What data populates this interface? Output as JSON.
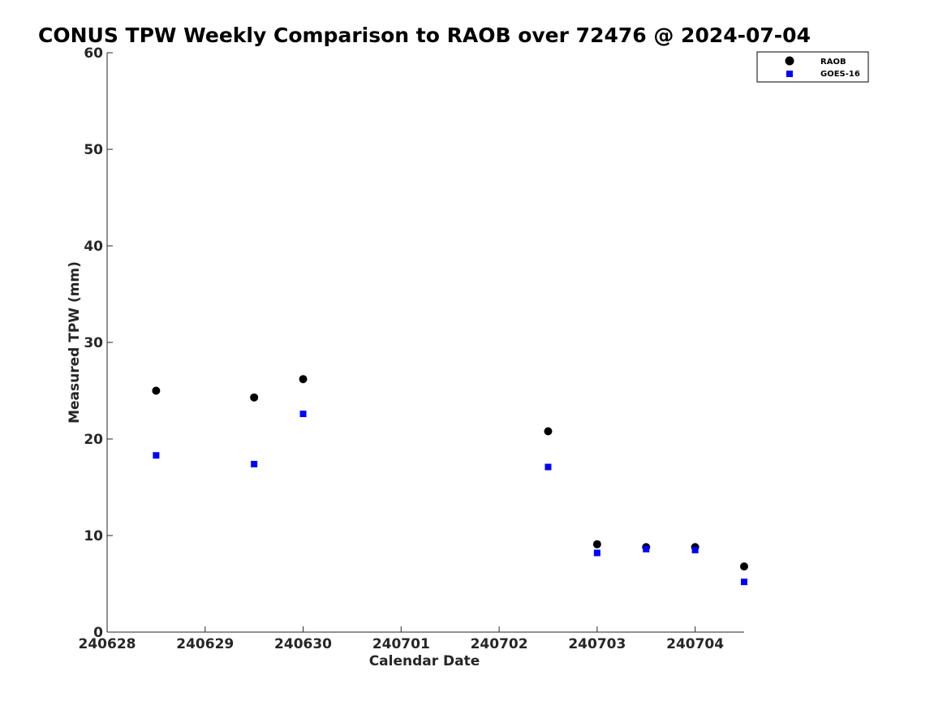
{
  "chart_data": {
    "type": "scatter",
    "title": "CONUS TPW Weekly Comparison to RAOB over 72476 @ 2024-07-04",
    "xlabel": "Calendar Date",
    "ylabel": "Measured TPW (mm)",
    "x_ticks": [
      "240628",
      "240629",
      "240630",
      "240701",
      "240702",
      "240703",
      "240704"
    ],
    "y_ticks": [
      "0",
      "10",
      "20",
      "30",
      "40",
      "50",
      "60"
    ],
    "xlim": [
      "2024-06-28 00:00",
      "2024-07-04 12:00"
    ],
    "ylim": [
      0,
      60
    ],
    "grid": false,
    "legend_position": "top-right",
    "series": [
      {
        "name": "RAOB",
        "marker": "circle",
        "color": "#000000",
        "x": [
          "2024-06-28 12:00",
          "2024-06-29 12:00",
          "2024-06-30 00:00",
          "2024-07-02 12:00",
          "2024-07-03 00:00",
          "2024-07-03 12:00",
          "2024-07-04 00:00",
          "2024-07-04 12:00"
        ],
        "y": [
          25.0,
          24.3,
          26.2,
          20.8,
          9.1,
          8.8,
          8.8,
          6.8
        ]
      },
      {
        "name": "GOES-16",
        "marker": "square",
        "color": "#0000ff",
        "x": [
          "2024-06-28 12:00",
          "2024-06-29 12:00",
          "2024-06-30 00:00",
          "2024-07-02 12:00",
          "2024-07-03 00:00",
          "2024-07-03 12:00",
          "2024-07-04 00:00",
          "2024-07-04 12:00"
        ],
        "y": [
          18.3,
          17.4,
          22.6,
          17.1,
          8.2,
          8.6,
          8.5,
          5.2
        ]
      }
    ]
  }
}
